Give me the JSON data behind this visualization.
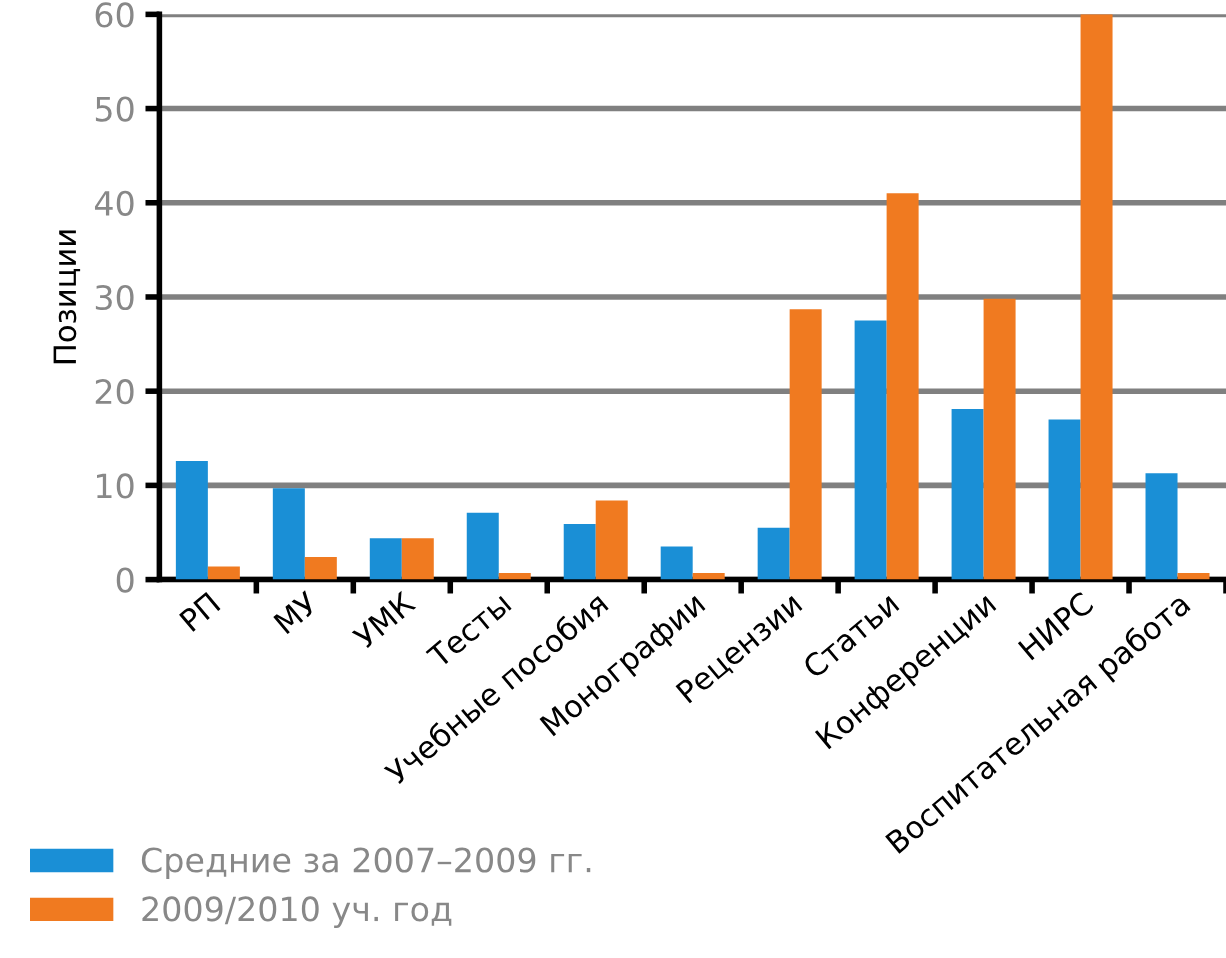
{
  "chart_data": {
    "type": "bar",
    "ylabel": "Позиции",
    "categories": [
      "РП",
      "МУ",
      "УМК",
      "Тесты",
      "Учебные пособия",
      "Монографии",
      "Рецензии",
      "Статьи",
      "Конференции",
      "НИРС",
      "Воспитательная работа"
    ],
    "series": [
      {
        "name": "Средние за 2007–2009 гг.",
        "color": "#1a8fd6",
        "values": [
          12.6,
          9.7,
          4.4,
          7.1,
          5.9,
          3.5,
          5.5,
          27.5,
          18.1,
          17.0,
          11.3
        ]
      },
      {
        "name": "2009/2010 уч. год",
        "color": "#f07a20",
        "values": [
          1.4,
          2.4,
          4.4,
          0.7,
          8.4,
          0.7,
          28.7,
          41.0,
          29.8,
          60,
          0.7
        ]
      }
    ],
    "ylim": [
      0,
      60
    ],
    "yticks": [
      0,
      10,
      20,
      30,
      40,
      50,
      60
    ],
    "grid": "y",
    "legend": "bottom left"
  }
}
